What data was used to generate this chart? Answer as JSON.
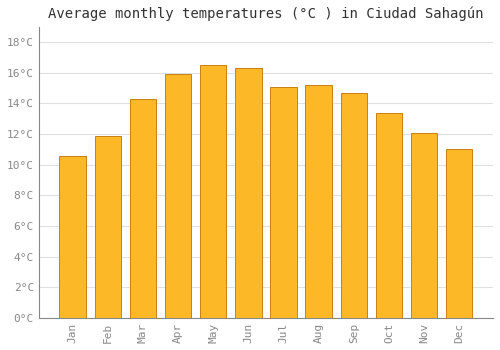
{
  "title": "Average monthly temperatures (°C ) in Ciudad Sahagún",
  "months": [
    "Jan",
    "Feb",
    "Mar",
    "Apr",
    "May",
    "Jun",
    "Jul",
    "Aug",
    "Sep",
    "Oct",
    "Nov",
    "Dec"
  ],
  "values": [
    10.6,
    11.9,
    14.3,
    15.9,
    16.5,
    16.3,
    15.1,
    15.2,
    14.7,
    13.4,
    12.1,
    11.0
  ],
  "bar_color": "#FDB827",
  "bar_edge_color": "#C88010",
  "ylim": [
    0,
    19
  ],
  "yticks": [
    0,
    2,
    4,
    6,
    8,
    10,
    12,
    14,
    16,
    18
  ],
  "ytick_labels": [
    "0°C",
    "2°C",
    "4°C",
    "6°C",
    "8°C",
    "10°C",
    "12°C",
    "14°C",
    "16°C",
    "18°C"
  ],
  "background_color": "#ffffff",
  "grid_color": "#e0e0e0",
  "title_fontsize": 10,
  "tick_fontsize": 8,
  "tick_color": "#888888",
  "spine_color": "#888888"
}
